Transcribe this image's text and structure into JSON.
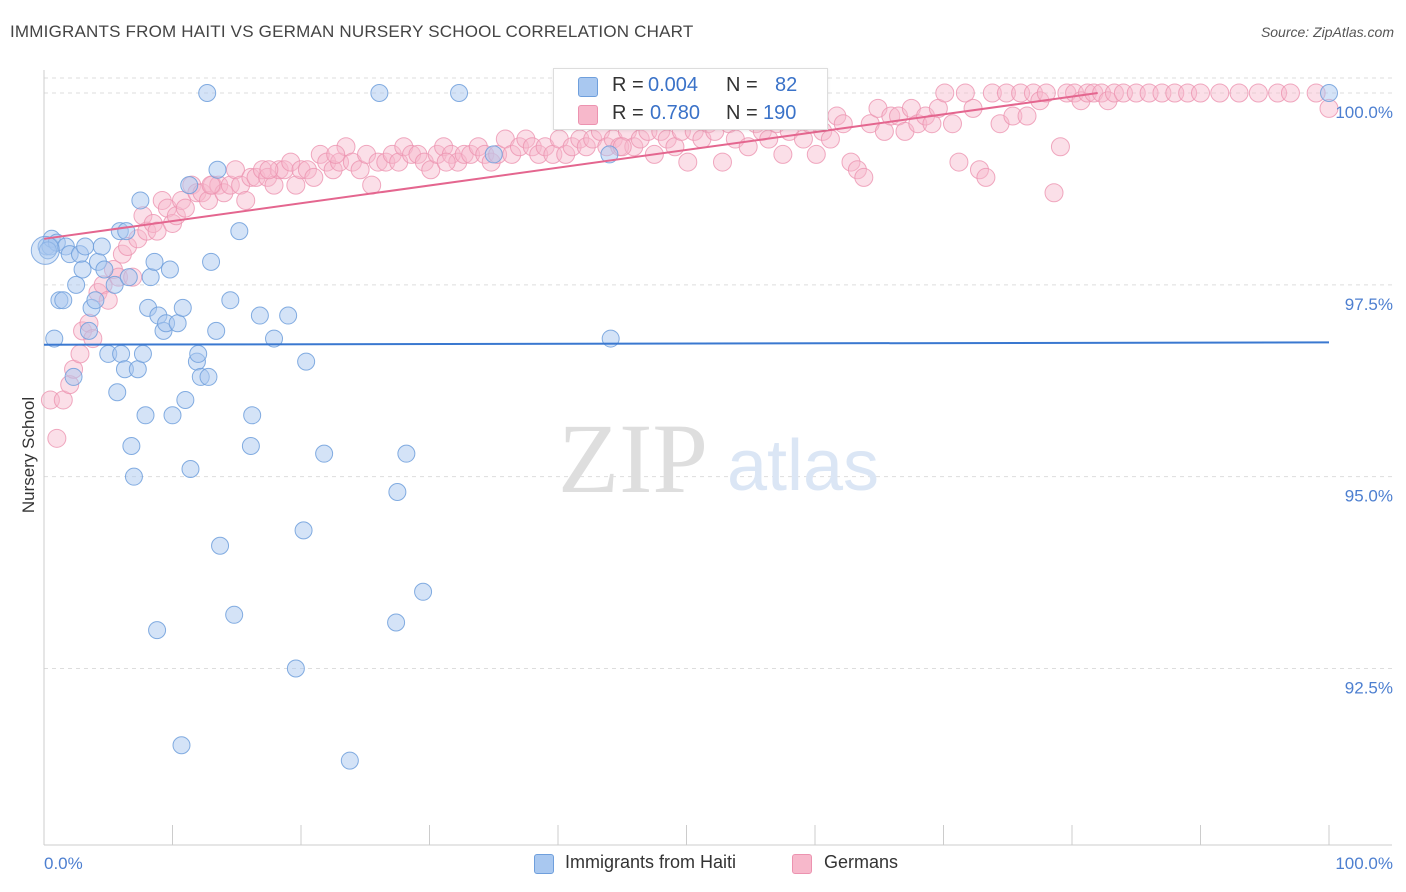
{
  "title": "IMMIGRANTS FROM HAITI VS GERMAN NURSERY SCHOOL CORRELATION CHART",
  "source": "Source: ZipAtlas.com",
  "watermark": {
    "zip": "ZIP",
    "atlas": "atlas"
  },
  "stats": [
    {
      "r_label": "R =",
      "r_value": "0.004",
      "n_label": "N =",
      "n_value": "82"
    },
    {
      "r_label": "R =",
      "r_value": "0.780",
      "n_label": "N =",
      "n_value": "190"
    }
  ],
  "chart_data": {
    "type": "scatter",
    "title": "IMMIGRANTS FROM HAITI VS GERMAN NURSERY SCHOOL CORRELATION CHART",
    "xlabel": "",
    "ylabel": "Nursery School",
    "xlim": [
      0,
      100
    ],
    "ylim": [
      90.2,
      100.3
    ],
    "x_tick_labels": [
      "0.0%",
      "100.0%"
    ],
    "y_ticks": [
      {
        "value": 92.5,
        "label": "92.5%"
      },
      {
        "value": 95.0,
        "label": "95.0%"
      },
      {
        "value": 97.5,
        "label": "97.5%"
      },
      {
        "value": 100.0,
        "label": "100.0%"
      }
    ],
    "colors": {
      "haiti_fill": "#a9c8f0",
      "haiti_stroke": "#6f9fdc",
      "haiti_line": "#3a78d0",
      "german_fill": "#f7b8cb",
      "german_stroke": "#ec93b0",
      "german_line": "#e4668f",
      "tick_label": "#4d7fd0",
      "grid": "#dddddd"
    },
    "series": [
      {
        "name": "Immigrants from Haiti",
        "trend": {
          "x": [
            0,
            100
          ],
          "y": [
            96.72,
            96.75
          ]
        },
        "points": [
          [
            0.2,
            98.0
          ],
          [
            0.5,
            98.0
          ],
          [
            0.6,
            98.1
          ],
          [
            0.8,
            96.8
          ],
          [
            1.0,
            98.05
          ],
          [
            1.2,
            97.3
          ],
          [
            1.5,
            97.3
          ],
          [
            1.7,
            98.0
          ],
          [
            2.0,
            97.9
          ],
          [
            2.3,
            96.3
          ],
          [
            2.5,
            97.5
          ],
          [
            2.8,
            97.9
          ],
          [
            3.0,
            97.7
          ],
          [
            3.2,
            98.0
          ],
          [
            3.5,
            96.9
          ],
          [
            3.7,
            97.2
          ],
          [
            4.0,
            97.3
          ],
          [
            4.2,
            97.8
          ],
          [
            4.5,
            98.0
          ],
          [
            4.7,
            97.7
          ],
          [
            5.0,
            96.6
          ],
          [
            5.5,
            97.5
          ],
          [
            5.7,
            96.1
          ],
          [
            5.9,
            98.2
          ],
          [
            6.0,
            96.6
          ],
          [
            6.3,
            96.4
          ],
          [
            6.4,
            98.2
          ],
          [
            6.6,
            97.6
          ],
          [
            6.8,
            95.4
          ],
          [
            7.0,
            95.0
          ],
          [
            7.3,
            96.4
          ],
          [
            7.5,
            98.6
          ],
          [
            7.7,
            96.6
          ],
          [
            7.9,
            95.8
          ],
          [
            8.1,
            97.2
          ],
          [
            8.3,
            97.6
          ],
          [
            8.6,
            97.8
          ],
          [
            8.8,
            93.0
          ],
          [
            8.9,
            97.1
          ],
          [
            9.3,
            96.9
          ],
          [
            9.5,
            97.0
          ],
          [
            9.8,
            97.7
          ],
          [
            10.0,
            95.8
          ],
          [
            10.4,
            97.0
          ],
          [
            10.7,
            91.5
          ],
          [
            10.8,
            97.2
          ],
          [
            11.0,
            96.0
          ],
          [
            11.3,
            98.8
          ],
          [
            11.4,
            95.1
          ],
          [
            11.9,
            96.5
          ],
          [
            12.0,
            96.6
          ],
          [
            12.2,
            96.3
          ],
          [
            12.7,
            100.0
          ],
          [
            12.8,
            96.3
          ],
          [
            13.0,
            97.8
          ],
          [
            13.4,
            96.9
          ],
          [
            13.5,
            99.0
          ],
          [
            13.7,
            94.1
          ],
          [
            14.5,
            97.3
          ],
          [
            14.8,
            93.2
          ],
          [
            15.2,
            98.2
          ],
          [
            16.2,
            95.8
          ],
          [
            16.1,
            95.4
          ],
          [
            16.8,
            97.1
          ],
          [
            17.9,
            96.8
          ],
          [
            19.0,
            97.1
          ],
          [
            19.6,
            92.5
          ],
          [
            20.2,
            94.3
          ],
          [
            20.4,
            96.5
          ],
          [
            21.8,
            95.3
          ],
          [
            23.8,
            91.3
          ],
          [
            26.1,
            100.0
          ],
          [
            27.4,
            93.1
          ],
          [
            27.5,
            94.8
          ],
          [
            28.2,
            95.3
          ],
          [
            29.5,
            93.5
          ],
          [
            32.3,
            100.0
          ],
          [
            35.0,
            99.2
          ],
          [
            44.0,
            99.2
          ],
          [
            44.1,
            96.8
          ],
          [
            100.0,
            100.0
          ],
          [
            0.3,
            97.95
          ]
        ]
      },
      {
        "name": "Germans",
        "trend": {
          "x": [
            0,
            82
          ],
          "y": [
            98.1,
            100.0
          ]
        },
        "points": [
          [
            0.5,
            96.0
          ],
          [
            1.0,
            95.5
          ],
          [
            1.5,
            96.0
          ],
          [
            2.0,
            96.2
          ],
          [
            2.3,
            96.4
          ],
          [
            2.8,
            96.6
          ],
          [
            3.0,
            96.9
          ],
          [
            3.5,
            97.0
          ],
          [
            3.8,
            96.8
          ],
          [
            4.2,
            97.4
          ],
          [
            4.6,
            97.5
          ],
          [
            5.0,
            97.3
          ],
          [
            5.4,
            97.7
          ],
          [
            5.8,
            97.6
          ],
          [
            6.1,
            97.9
          ],
          [
            6.5,
            98.0
          ],
          [
            6.9,
            97.6
          ],
          [
            7.3,
            98.1
          ],
          [
            7.7,
            98.4
          ],
          [
            8.0,
            98.2
          ],
          [
            8.5,
            98.3
          ],
          [
            8.8,
            98.2
          ],
          [
            9.2,
            98.6
          ],
          [
            9.6,
            98.5
          ],
          [
            10.0,
            98.3
          ],
          [
            10.3,
            98.4
          ],
          [
            10.7,
            98.6
          ],
          [
            11.0,
            98.5
          ],
          [
            11.5,
            98.8
          ],
          [
            11.9,
            98.7
          ],
          [
            12.3,
            98.7
          ],
          [
            12.8,
            98.6
          ],
          [
            13.1,
            98.8
          ],
          [
            13.6,
            98.8
          ],
          [
            14.0,
            98.7
          ],
          [
            14.5,
            98.8
          ],
          [
            14.9,
            99.0
          ],
          [
            15.3,
            98.8
          ],
          [
            15.7,
            98.6
          ],
          [
            16.1,
            98.9
          ],
          [
            16.5,
            98.9
          ],
          [
            17.0,
            99.0
          ],
          [
            17.4,
            98.9
          ],
          [
            17.9,
            98.8
          ],
          [
            18.3,
            99.0
          ],
          [
            18.7,
            99.0
          ],
          [
            19.2,
            99.1
          ],
          [
            19.6,
            98.8
          ],
          [
            20.0,
            99.0
          ],
          [
            20.5,
            99.0
          ],
          [
            21.0,
            98.9
          ],
          [
            21.5,
            99.2
          ],
          [
            22.0,
            99.1
          ],
          [
            22.5,
            99.0
          ],
          [
            23.0,
            99.1
          ],
          [
            23.5,
            99.3
          ],
          [
            24.0,
            99.1
          ],
          [
            24.6,
            99.0
          ],
          [
            25.1,
            99.2
          ],
          [
            25.5,
            98.8
          ],
          [
            26.0,
            99.1
          ],
          [
            26.6,
            99.1
          ],
          [
            27.1,
            99.2
          ],
          [
            27.6,
            99.1
          ],
          [
            28.0,
            99.3
          ],
          [
            28.6,
            99.2
          ],
          [
            29.1,
            99.2
          ],
          [
            29.6,
            99.1
          ],
          [
            30.1,
            99.0
          ],
          [
            30.6,
            99.2
          ],
          [
            31.1,
            99.3
          ],
          [
            31.7,
            99.2
          ],
          [
            32.2,
            99.1
          ],
          [
            32.7,
            99.2
          ],
          [
            33.2,
            99.2
          ],
          [
            33.8,
            99.3
          ],
          [
            34.3,
            99.2
          ],
          [
            34.8,
            99.1
          ],
          [
            35.3,
            99.2
          ],
          [
            35.9,
            99.4
          ],
          [
            36.4,
            99.2
          ],
          [
            37.0,
            99.3
          ],
          [
            37.5,
            99.4
          ],
          [
            38.0,
            99.3
          ],
          [
            38.5,
            99.2
          ],
          [
            39.0,
            99.3
          ],
          [
            39.6,
            99.2
          ],
          [
            40.1,
            99.4
          ],
          [
            40.6,
            99.2
          ],
          [
            41.1,
            99.3
          ],
          [
            41.7,
            99.4
          ],
          [
            42.2,
            99.3
          ],
          [
            42.7,
            99.4
          ],
          [
            43.3,
            99.5
          ],
          [
            43.8,
            99.3
          ],
          [
            44.3,
            99.4
          ],
          [
            44.8,
            99.3
          ],
          [
            45.4,
            99.5
          ],
          [
            45.9,
            99.3
          ],
          [
            46.4,
            99.4
          ],
          [
            47.0,
            99.5
          ],
          [
            47.5,
            99.2
          ],
          [
            48.0,
            99.5
          ],
          [
            48.5,
            99.4
          ],
          [
            49.1,
            99.3
          ],
          [
            49.6,
            99.5
          ],
          [
            50.1,
            99.1
          ],
          [
            50.6,
            99.5
          ],
          [
            51.2,
            99.4
          ],
          [
            51.7,
            99.6
          ],
          [
            52.2,
            99.5
          ],
          [
            52.8,
            99.1
          ],
          [
            53.3,
            99.6
          ],
          [
            53.8,
            99.4
          ],
          [
            54.3,
            99.7
          ],
          [
            54.8,
            99.3
          ],
          [
            55.4,
            99.6
          ],
          [
            55.9,
            99.5
          ],
          [
            56.4,
            99.4
          ],
          [
            57.0,
            99.6
          ],
          [
            57.5,
            99.2
          ],
          [
            58.0,
            99.5
          ],
          [
            58.5,
            99.7
          ],
          [
            59.1,
            99.4
          ],
          [
            59.6,
            99.6
          ],
          [
            60.1,
            99.2
          ],
          [
            60.6,
            99.5
          ],
          [
            61.2,
            99.4
          ],
          [
            61.7,
            99.7
          ],
          [
            62.2,
            99.6
          ],
          [
            62.8,
            99.1
          ],
          [
            63.3,
            99.0
          ],
          [
            63.8,
            98.9
          ],
          [
            64.3,
            99.6
          ],
          [
            64.9,
            99.8
          ],
          [
            65.4,
            99.5
          ],
          [
            65.9,
            99.7
          ],
          [
            66.5,
            99.7
          ],
          [
            67.0,
            99.5
          ],
          [
            67.5,
            99.8
          ],
          [
            68.0,
            99.6
          ],
          [
            68.6,
            99.7
          ],
          [
            69.1,
            99.6
          ],
          [
            69.6,
            99.8
          ],
          [
            70.1,
            100.0
          ],
          [
            70.7,
            99.6
          ],
          [
            71.2,
            99.1
          ],
          [
            71.7,
            100.0
          ],
          [
            72.3,
            99.8
          ],
          [
            72.8,
            99.0
          ],
          [
            73.3,
            98.9
          ],
          [
            73.8,
            100.0
          ],
          [
            74.4,
            99.6
          ],
          [
            74.9,
            100.0
          ],
          [
            75.4,
            99.7
          ],
          [
            76.0,
            100.0
          ],
          [
            76.5,
            99.7
          ],
          [
            77.0,
            100.0
          ],
          [
            77.5,
            99.9
          ],
          [
            78.0,
            100.0
          ],
          [
            78.6,
            98.7
          ],
          [
            79.1,
            99.3
          ],
          [
            79.6,
            100.0
          ],
          [
            80.2,
            100.0
          ],
          [
            80.7,
            99.9
          ],
          [
            81.2,
            100.0
          ],
          [
            81.7,
            100.0
          ],
          [
            82.3,
            100.0
          ],
          [
            82.8,
            99.9
          ],
          [
            83.3,
            100.0
          ],
          [
            84.0,
            100.0
          ],
          [
            85.0,
            100.0
          ],
          [
            86.0,
            100.0
          ],
          [
            87.0,
            100.0
          ],
          [
            88.0,
            100.0
          ],
          [
            89.0,
            100.0
          ],
          [
            90.0,
            100.0
          ],
          [
            91.5,
            100.0
          ],
          [
            93.0,
            100.0
          ],
          [
            94.5,
            100.0
          ],
          [
            96.0,
            100.0
          ],
          [
            97.0,
            100.0
          ],
          [
            99.0,
            100.0
          ],
          [
            100.0,
            99.8
          ],
          [
            13.0,
            98.8
          ],
          [
            17.5,
            99.0
          ],
          [
            22.7,
            99.2
          ],
          [
            31.3,
            99.1
          ],
          [
            45.0,
            99.3
          ],
          [
            55.0,
            99.8
          ]
        ]
      }
    ]
  },
  "legend": {
    "haiti_label": "Immigrants from Haiti",
    "german_label": "Germans"
  }
}
